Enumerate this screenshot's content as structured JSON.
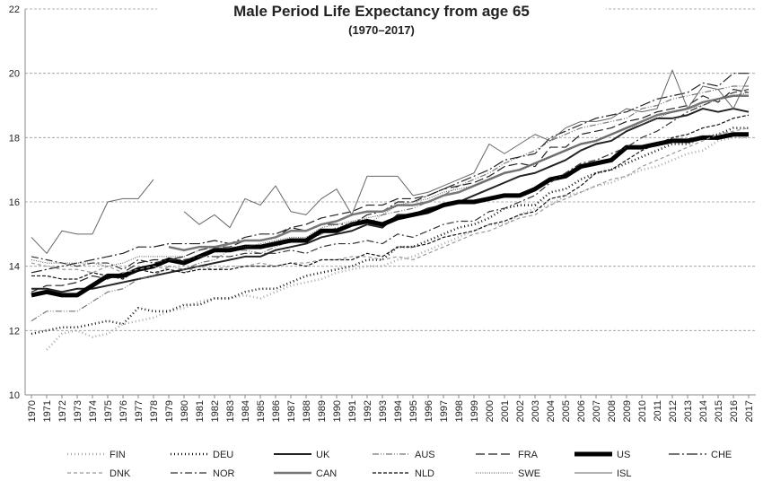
{
  "chart_data": {
    "type": "line",
    "title": "Male Period Life Expectancy from age 65",
    "subtitle": "(1970–2017)",
    "categories": [
      "1970",
      "1971",
      "1972",
      "1973",
      "1974",
      "1975",
      "1976",
      "1977",
      "1978",
      "1979",
      "1980",
      "1981",
      "1982",
      "1983",
      "1984",
      "1985",
      "1986",
      "1987",
      "1988",
      "1989",
      "1990",
      "1991",
      "1992",
      "1993",
      "1994",
      "1995",
      "1996",
      "1997",
      "1998",
      "1999",
      "2000",
      "2001",
      "2002",
      "2003",
      "2004",
      "2005",
      "2006",
      "2007",
      "2008",
      "2009",
      "2010",
      "2011",
      "2012",
      "2013",
      "2014",
      "2015",
      "2016",
      "2017"
    ],
    "ylim": [
      10,
      22
    ],
    "yticks": [
      10,
      12,
      14,
      16,
      18,
      20,
      22
    ],
    "grid": true,
    "series": [
      {
        "name": "FIN",
        "color": "#aaaaaa",
        "width": 2.5,
        "dash": "1 3",
        "values": [
          null,
          11.4,
          11.9,
          12.0,
          11.8,
          11.9,
          12.2,
          12.3,
          12.4,
          12.6,
          12.7,
          12.9,
          13.0,
          13.0,
          13.1,
          13.0,
          13.2,
          13.4,
          13.5,
          13.6,
          13.8,
          13.9,
          14.0,
          14.0,
          14.2,
          14.3,
          14.5,
          14.7,
          14.9,
          15.1,
          15.3,
          15.3,
          15.6,
          15.8,
          15.9,
          16.2,
          16.3,
          16.5,
          16.6,
          16.8,
          17.0,
          17.1,
          17.3,
          17.5,
          17.6,
          17.9,
          18.0,
          18.0
        ]
      },
      {
        "name": "DEU",
        "color": "#111111",
        "width": 2.5,
        "dash": "1 3",
        "values": [
          11.9,
          12.0,
          12.1,
          12.1,
          12.2,
          12.3,
          12.2,
          12.7,
          12.6,
          12.6,
          12.8,
          12.8,
          13.0,
          13.0,
          13.2,
          13.3,
          13.3,
          13.5,
          13.7,
          13.8,
          13.9,
          14.0,
          14.2,
          14.2,
          14.6,
          14.6,
          14.8,
          15.0,
          15.2,
          15.3,
          15.5,
          15.8,
          15.9,
          15.9,
          16.3,
          16.4,
          16.7,
          16.9,
          17.0,
          17.2,
          17.4,
          17.6,
          17.8,
          17.8,
          18.0,
          18.1,
          18.3,
          18.3
        ]
      },
      {
        "name": "UK",
        "color": "#222222",
        "width": 2,
        "dash": "",
        "values": [
          13.3,
          13.3,
          13.2,
          13.3,
          13.3,
          13.4,
          13.5,
          13.6,
          13.7,
          13.8,
          13.9,
          14.0,
          14.1,
          14.2,
          14.3,
          14.3,
          14.5,
          14.6,
          14.7,
          14.9,
          15.0,
          15.1,
          15.3,
          15.2,
          15.6,
          15.6,
          15.8,
          15.9,
          16.0,
          16.2,
          16.4,
          16.6,
          16.8,
          16.9,
          17.1,
          17.3,
          17.6,
          17.8,
          17.9,
          18.2,
          18.4,
          18.6,
          18.6,
          18.7,
          18.9,
          18.8,
          18.9,
          18.8
        ]
      },
      {
        "name": "AUS",
        "color": "#777777",
        "width": 1.2,
        "dash": "7 2 1 2 1 2",
        "values": [
          12.3,
          12.6,
          12.6,
          12.6,
          12.9,
          13.2,
          13.3,
          13.6,
          13.7,
          14.0,
          13.9,
          14.1,
          14.2,
          14.5,
          14.5,
          14.4,
          14.6,
          14.8,
          14.8,
          15.0,
          15.2,
          15.3,
          15.3,
          15.6,
          15.7,
          15.8,
          16.0,
          16.2,
          16.5,
          16.7,
          16.9,
          17.2,
          17.4,
          17.6,
          17.9,
          18.1,
          18.3,
          18.4,
          18.5,
          18.6,
          18.9,
          19.0,
          19.2,
          19.3,
          19.4,
          19.5,
          19.6,
          19.6
        ]
      },
      {
        "name": "FRA",
        "color": "#222222",
        "width": 1.2,
        "dash": "10 4",
        "values": [
          13.2,
          13.4,
          13.4,
          13.5,
          13.7,
          13.6,
          13.8,
          14.1,
          14.2,
          14.2,
          14.3,
          14.5,
          14.6,
          14.6,
          14.8,
          14.8,
          14.9,
          15.2,
          15.3,
          15.5,
          15.6,
          15.7,
          15.9,
          15.9,
          16.1,
          16.1,
          16.2,
          16.4,
          16.5,
          16.6,
          16.8,
          17.1,
          17.2,
          17.1,
          17.7,
          17.7,
          18.1,
          18.2,
          18.3,
          18.5,
          18.6,
          18.8,
          18.9,
          19.0,
          19.3,
          19.1,
          19.5,
          19.4
        ]
      },
      {
        "name": "US",
        "color": "#000000",
        "width": 5,
        "dash": "",
        "values": [
          13.1,
          13.2,
          13.1,
          13.1,
          13.4,
          13.7,
          13.7,
          13.9,
          14.0,
          14.2,
          14.1,
          14.3,
          14.5,
          14.5,
          14.6,
          14.6,
          14.7,
          14.8,
          14.8,
          15.1,
          15.1,
          15.3,
          15.4,
          15.3,
          15.5,
          15.6,
          15.7,
          15.9,
          16.0,
          16.0,
          16.1,
          16.2,
          16.2,
          16.4,
          16.7,
          16.8,
          17.1,
          17.2,
          17.3,
          17.7,
          17.7,
          17.8,
          17.9,
          17.9,
          18.0,
          18.0,
          18.1,
          18.1
        ]
      },
      {
        "name": "CHE",
        "color": "#222222",
        "width": 1.2,
        "dash": "12 3 2 3",
        "values": [
          13.8,
          13.9,
          14.0,
          14.1,
          14.2,
          14.3,
          14.4,
          14.6,
          14.6,
          14.7,
          14.7,
          14.7,
          14.8,
          14.7,
          14.9,
          15.0,
          15.0,
          15.2,
          15.1,
          15.3,
          15.3,
          15.3,
          15.6,
          15.7,
          16.0,
          16.0,
          16.2,
          16.4,
          16.6,
          16.8,
          17.0,
          17.3,
          17.4,
          17.5,
          18.0,
          18.2,
          18.4,
          18.6,
          18.7,
          18.8,
          19.0,
          19.2,
          19.3,
          19.4,
          19.7,
          19.6,
          20.0,
          20.0
        ]
      },
      {
        "name": "DNK",
        "color": "#999999",
        "width": 1.2,
        "dash": "4 3",
        "values": [
          14.1,
          14.0,
          13.9,
          13.9,
          13.8,
          14.0,
          13.8,
          13.9,
          14.0,
          13.9,
          13.8,
          14.0,
          13.9,
          14.0,
          14.0,
          14.1,
          14.0,
          14.1,
          14.1,
          14.2,
          14.2,
          14.3,
          14.3,
          14.2,
          14.3,
          14.2,
          14.4,
          14.6,
          14.8,
          15.0,
          15.1,
          15.3,
          15.5,
          15.6,
          15.9,
          16.1,
          16.3,
          16.5,
          16.7,
          16.8,
          17.1,
          17.3,
          17.5,
          17.7,
          17.9,
          18.1,
          18.2,
          18.3
        ]
      },
      {
        "name": "NOR",
        "color": "#333333",
        "width": 1.2,
        "dash": "8 3 2 3",
        "values": [
          14.3,
          14.2,
          14.1,
          14.0,
          14.1,
          14.1,
          13.9,
          14.2,
          14.1,
          14.2,
          14.2,
          14.3,
          14.3,
          14.3,
          14.4,
          14.4,
          14.4,
          14.5,
          14.4,
          14.6,
          14.7,
          14.7,
          14.8,
          14.7,
          15.0,
          14.9,
          15.1,
          15.3,
          15.4,
          15.4,
          15.7,
          15.8,
          16.0,
          16.2,
          16.6,
          16.9,
          17.2,
          17.3,
          17.5,
          17.7,
          18.0,
          18.2,
          18.5,
          18.8,
          19.0,
          19.2,
          19.4,
          19.5
        ]
      },
      {
        "name": "CAN",
        "color": "#777777",
        "width": 2.5,
        "dash": "",
        "values": [
          null,
          null,
          null,
          null,
          null,
          null,
          null,
          null,
          null,
          14.6,
          14.5,
          14.6,
          14.6,
          14.7,
          14.8,
          14.8,
          14.9,
          15.1,
          15.1,
          15.3,
          15.4,
          15.6,
          15.7,
          15.7,
          15.9,
          15.9,
          16.0,
          16.2,
          16.3,
          16.5,
          16.7,
          16.9,
          17.0,
          17.2,
          17.4,
          17.6,
          17.8,
          17.9,
          18.1,
          18.3,
          18.5,
          18.7,
          18.8,
          18.9,
          19.1,
          19.2,
          19.3,
          19.3
        ]
      },
      {
        "name": "NLD",
        "color": "#111111",
        "width": 1.2,
        "dash": "4 2",
        "values": [
          13.7,
          13.7,
          13.6,
          13.6,
          13.8,
          13.7,
          13.6,
          13.9,
          13.8,
          13.9,
          13.8,
          13.9,
          13.9,
          13.9,
          14.0,
          14.0,
          14.0,
          14.1,
          14.0,
          14.2,
          14.2,
          14.2,
          14.4,
          14.3,
          14.6,
          14.6,
          14.7,
          14.9,
          15.0,
          15.1,
          15.3,
          15.4,
          15.6,
          15.7,
          16.1,
          16.2,
          16.5,
          16.9,
          17.0,
          17.3,
          17.6,
          17.8,
          18.0,
          18.1,
          18.3,
          18.4,
          18.6,
          18.7
        ]
      },
      {
        "name": "SWE",
        "color": "#555555",
        "width": 1,
        "dash": "1 1.5",
        "values": [
          14.2,
          14.1,
          14.1,
          14.1,
          14.1,
          14.0,
          14.1,
          14.3,
          14.3,
          14.3,
          14.3,
          14.5,
          14.6,
          14.6,
          14.6,
          14.7,
          14.8,
          14.9,
          14.9,
          15.2,
          15.3,
          15.4,
          15.5,
          15.6,
          15.9,
          16.0,
          16.1,
          16.3,
          16.4,
          16.5,
          16.7,
          16.9,
          17.0,
          17.2,
          17.4,
          17.6,
          17.8,
          17.9,
          18.1,
          18.3,
          18.4,
          18.6,
          18.8,
          18.9,
          19.0,
          19.2,
          19.3,
          19.4
        ]
      },
      {
        "name": "ISL",
        "color": "#666666",
        "width": 1,
        "dash": "",
        "values": [
          14.9,
          14.4,
          15.1,
          15.0,
          15.0,
          16.0,
          16.1,
          16.1,
          16.7,
          null,
          15.7,
          15.3,
          15.6,
          15.2,
          16.1,
          15.9,
          16.5,
          15.7,
          15.6,
          16.1,
          16.4,
          15.6,
          16.8,
          16.8,
          16.8,
          16.2,
          16.3,
          16.5,
          16.7,
          16.9,
          17.8,
          17.5,
          17.8,
          18.1,
          17.9,
          18.3,
          18.5,
          18.5,
          18.6,
          18.9,
          18.8,
          18.9,
          20.1,
          18.9,
          19.6,
          19.5,
          18.9,
          19.9
        ]
      }
    ]
  }
}
